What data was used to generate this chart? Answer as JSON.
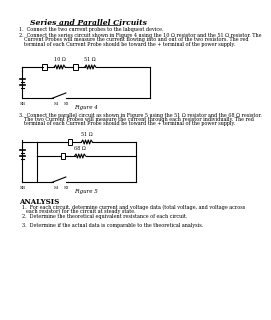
{
  "title": "Series and Parallel Circuits",
  "bg_color": "#ffffff",
  "text_color": "#000000",
  "instructions": [
    "Connect the two current probes to the labquest device.",
    "Connect the series circuit shown in Figure 4 using the 10 Ω resistor and the 51 Ω resistor. The\nCurrent Probes will measure the current flowing into and out of the two resistors. The red\nterminal of each Current Probe should be toward the + terminal of the power supply.",
    "Connect the parallel circuit as shown in Figure 5 using the 51 Ω resistor and the 68 Ω resistor.\nThe two Current Probes will measure the current through each resistor individually. The red\nterminal of each Current Probe should be toward the + terminal of the power supply."
  ],
  "figure4_label": "Figure 4",
  "figure5_label": "Figure 5",
  "analysis_title": "ANALYSIS",
  "analysis_items": [
    "For each circuit, determine current and voltage data (total voltage, and voltage across\neach resistor) for the circuit at steady state.",
    "Determine the theoretical equivalent resistance of each circuit.",
    "Determine if the actual data is comparable to the theoretical analysis."
  ]
}
